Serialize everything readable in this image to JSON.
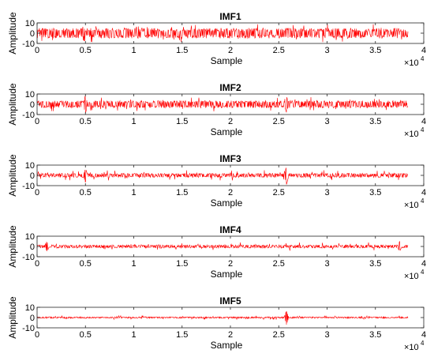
{
  "chart_data": [
    {
      "type": "line",
      "title": "IMF1",
      "xlabel": "Sample",
      "ylabel": "Amplitude",
      "xlim": [
        0,
        40000
      ],
      "ylim": [
        -10,
        10
      ],
      "xticks": [
        0,
        0.5,
        1,
        1.5,
        2,
        2.5,
        3,
        3.5,
        4
      ],
      "yticks": [
        -10,
        0,
        10
      ],
      "x_exponent": "×10",
      "x_exponent_power": "4",
      "series": [
        {
          "color": "#ff0000",
          "x_range": [
            0,
            38400
          ],
          "typical_amplitude": 5,
          "peak_amplitude": 9,
          "spikes": []
        }
      ]
    },
    {
      "type": "line",
      "title": "IMF2",
      "xlabel": "Sample",
      "ylabel": "Amplitude",
      "xlim": [
        0,
        40000
      ],
      "ylim": [
        -10,
        10
      ],
      "xticks": [
        0,
        0.5,
        1,
        1.5,
        2,
        2.5,
        3,
        3.5,
        4
      ],
      "yticks": [
        -10,
        0,
        10
      ],
      "x_exponent": "×10",
      "x_exponent_power": "4",
      "series": [
        {
          "color": "#ff0000",
          "x_range": [
            0,
            38400
          ],
          "typical_amplitude": 3.5,
          "peak_amplitude": 7,
          "spikes": [
            [
              5000,
              9
            ],
            [
              25800,
              8
            ]
          ]
        }
      ]
    },
    {
      "type": "line",
      "title": "IMF3",
      "xlabel": "Sample",
      "ylabel": "Amplitude",
      "xlim": [
        0,
        40000
      ],
      "ylim": [
        -10,
        10
      ],
      "xticks": [
        0,
        0.5,
        1,
        1.5,
        2,
        2.5,
        3,
        3.5,
        4
      ],
      "yticks": [
        -10,
        0,
        10
      ],
      "x_exponent": "×10",
      "x_exponent_power": "4",
      "series": [
        {
          "color": "#ff0000",
          "x_range": [
            0,
            38400
          ],
          "typical_amplitude": 2,
          "peak_amplitude": 5,
          "spikes": [
            [
              5000,
              7
            ],
            [
              25800,
              9
            ]
          ]
        }
      ]
    },
    {
      "type": "line",
      "title": "IMF4",
      "xlabel": "Sample",
      "ylabel": "Amplitude",
      "xlim": [
        0,
        40000
      ],
      "ylim": [
        -10,
        10
      ],
      "xticks": [
        0,
        0.5,
        1,
        1.5,
        2,
        2.5,
        3,
        3.5,
        4
      ],
      "yticks": [
        -10,
        0,
        10
      ],
      "x_exponent": "×10",
      "x_exponent_power": "4",
      "series": [
        {
          "color": "#ff0000",
          "x_range": [
            0,
            38400
          ],
          "typical_amplitude": 1.5,
          "peak_amplitude": 4,
          "spikes": [
            [
              1000,
              5
            ],
            [
              37500,
              5
            ]
          ]
        }
      ]
    },
    {
      "type": "line",
      "title": "IMF5",
      "xlabel": "Sample",
      "ylabel": "Amplitude",
      "xlim": [
        0,
        40000
      ],
      "ylim": [
        -10,
        10
      ],
      "xticks": [
        0,
        0.5,
        1,
        1.5,
        2,
        2.5,
        3,
        3.5,
        4
      ],
      "yticks": [
        -10,
        0,
        10
      ],
      "x_exponent": "×10",
      "x_exponent_power": "4",
      "series": [
        {
          "color": "#ff0000",
          "x_range": [
            0,
            38400
          ],
          "typical_amplitude": 0.7,
          "peak_amplitude": 2,
          "spikes": [
            [
              25800,
              7
            ]
          ]
        }
      ]
    }
  ]
}
